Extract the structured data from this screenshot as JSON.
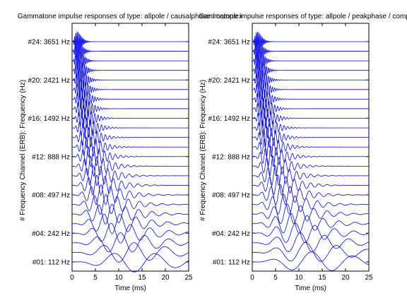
{
  "chart_data": [
    {
      "type": "line",
      "title": "Gammatone impulse responses of type: allpole / causalphase / complex",
      "xlabel": "Time (ms)",
      "ylabel": "# Frequency Channel (ERB): Frequency (Hz)",
      "xlim": [
        0,
        25
      ],
      "xticks": [
        "0",
        "5",
        "10",
        "15",
        "20",
        "25"
      ],
      "channel_count": 24,
      "channel_labels": [
        {
          "channel": 24,
          "label": "#24: 3651 Hz"
        },
        {
          "channel": 20,
          "label": "#20: 2421 Hz"
        },
        {
          "channel": 16,
          "label": "#16: 1492 Hz"
        },
        {
          "channel": 12,
          "label": "#12:  888 Hz"
        },
        {
          "channel": 8,
          "label": "#08:  497 Hz"
        },
        {
          "channel": 4,
          "label": "#04:  242 Hz"
        },
        {
          "channel": 1,
          "label": "#01:  112 Hz"
        }
      ],
      "series_color": "#0000ff",
      "grid": false
    },
    {
      "type": "line",
      "title": "Gammatone impulse responses of type: allpole / peakphase / complex",
      "xlabel": "Time (ms)",
      "ylabel": "# Frequency Channel (ERB): Frequency (Hz)",
      "xlim": [
        0,
        25
      ],
      "xticks": [
        "0",
        "5",
        "10",
        "15",
        "20",
        "25"
      ],
      "channel_count": 24,
      "channel_labels": [
        {
          "channel": 24,
          "label": "#24: 3651 Hz"
        },
        {
          "channel": 20,
          "label": "#20: 2421 Hz"
        },
        {
          "channel": 16,
          "label": "#16: 1492 Hz"
        },
        {
          "channel": 12,
          "label": "#12:  888 Hz"
        },
        {
          "channel": 8,
          "label": "#08:  497 Hz"
        },
        {
          "channel": 4,
          "label": "#04:  242 Hz"
        },
        {
          "channel": 1,
          "label": "#01:  112 Hz"
        }
      ],
      "series_color": "#0000ff",
      "grid": false
    }
  ]
}
